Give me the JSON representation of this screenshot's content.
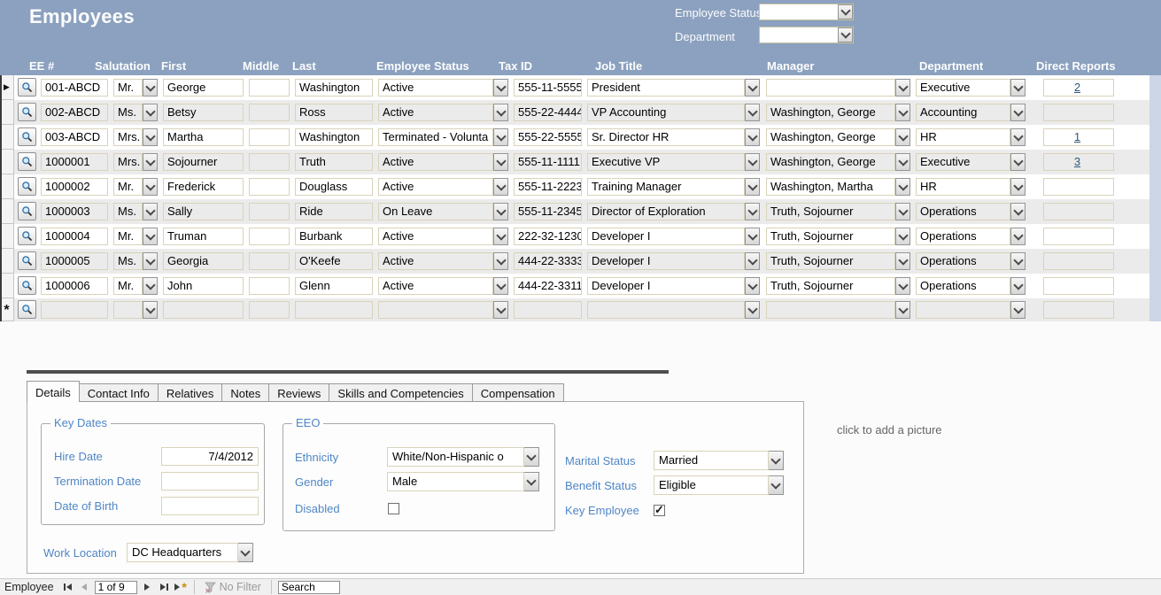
{
  "header": {
    "title": "Employees",
    "filter_employee_status_label": "Employee Status",
    "filter_employee_status_value": "",
    "filter_department_label": "Department",
    "filter_department_value": ""
  },
  "grid": {
    "columns": [
      "EE #",
      "Salutation",
      "First",
      "Middle",
      "Last",
      "Employee Status",
      "Tax ID",
      "Job Title",
      "Manager",
      "Department",
      "Direct Reports"
    ],
    "current_record_marker": "▶",
    "new_record_marker": "*",
    "rows": [
      {
        "ee": "001-ABCD",
        "salutation": "Mr.",
        "first": "George",
        "middle": "",
        "last": "Washington",
        "status": "Active",
        "tax": "555-11-5555",
        "title": "President",
        "manager": "",
        "department": "Executive",
        "reports": "2"
      },
      {
        "ee": "002-ABCD",
        "salutation": "Ms.",
        "first": "Betsy",
        "middle": "",
        "last": "Ross",
        "status": "Active",
        "tax": "555-22-4444",
        "title": "VP Accounting",
        "manager": "Washington, George",
        "department": "Accounting",
        "reports": ""
      },
      {
        "ee": "003-ABCD",
        "salutation": "Mrs.",
        "first": "Martha",
        "middle": "",
        "last": "Washington",
        "status": "Terminated - Volunta",
        "tax": "555-22-5555",
        "title": "Sr. Director HR",
        "manager": "Washington, George",
        "department": "HR",
        "reports": "1"
      },
      {
        "ee": "1000001",
        "salutation": "Mrs.",
        "first": "Sojourner",
        "middle": "",
        "last": "Truth",
        "status": "Active",
        "tax": "555-11-1111",
        "title": "Executive VP",
        "manager": "Washington, George",
        "department": "Executive",
        "reports": "3"
      },
      {
        "ee": "1000002",
        "salutation": "Mr.",
        "first": "Frederick",
        "middle": "",
        "last": "Douglass",
        "status": "Active",
        "tax": "555-11-2223",
        "title": "Training Manager",
        "manager": "Washington, Martha",
        "department": "HR",
        "reports": ""
      },
      {
        "ee": "1000003",
        "salutation": "Ms.",
        "first": "Sally",
        "middle": "",
        "last": "Ride",
        "status": "On Leave",
        "tax": "555-11-2345",
        "title": "Director of Exploration",
        "manager": "Truth, Sojourner",
        "department": "Operations",
        "reports": ""
      },
      {
        "ee": "1000004",
        "salutation": "Mr.",
        "first": "Truman",
        "middle": "",
        "last": "Burbank",
        "status": "Active",
        "tax": "222-32-1230",
        "title": "Developer I",
        "manager": "Truth, Sojourner",
        "department": "Operations",
        "reports": ""
      },
      {
        "ee": "1000005",
        "salutation": "Ms.",
        "first": "Georgia",
        "middle": "",
        "last": "O'Keefe",
        "status": "Active",
        "tax": "444-22-3333",
        "title": "Developer I",
        "manager": "Truth, Sojourner",
        "department": "Operations",
        "reports": ""
      },
      {
        "ee": "1000006",
        "salutation": "Mr.",
        "first": "John",
        "middle": "",
        "last": "Glenn",
        "status": "Active",
        "tax": "444-22-3311",
        "title": "Developer I",
        "manager": "Truth, Sojourner",
        "department": "Operations",
        "reports": ""
      }
    ]
  },
  "tabs": {
    "items": [
      "Details",
      "Contact Info",
      "Relatives",
      "Notes",
      "Reviews",
      "Skills and Competencies",
      "Compensation"
    ],
    "active": "Details"
  },
  "details": {
    "key_dates": {
      "legend": "Key Dates",
      "hire_date_label": "Hire Date",
      "hire_date_value": "7/4/2012",
      "termination_date_label": "Termination Date",
      "termination_date_value": "",
      "dob_label": "Date of Birth",
      "dob_value": ""
    },
    "eeo": {
      "legend": "EEO",
      "ethnicity_label": "Ethnicity",
      "ethnicity_value": "White/Non-Hispanic o",
      "gender_label": "Gender",
      "gender_value": "Male",
      "disabled_label": "Disabled",
      "disabled_checked": false
    },
    "statuses": {
      "marital_label": "Marital Status",
      "marital_value": "Married",
      "benefit_label": "Benefit Status",
      "benefit_value": "Eligible",
      "key_employee_label": "Key Employee",
      "key_employee_checked": true
    },
    "work_location_label": "Work Location",
    "work_location_value": "DC Headquarters"
  },
  "picture_placeholder": "click to add a picture",
  "status_bar": {
    "entity": "Employee",
    "position": "1 of 9",
    "no_filter": "No Filter",
    "search_value": "Search"
  },
  "colors": {
    "header_blue": "#8ba1bf",
    "accent_label_blue": "#4f86c6",
    "link_navy": "#2c5777",
    "row_alt_gray": "#ebebeb",
    "field_border_tan": "#d9d3ba",
    "right_strip_blue": "#ccd6e6"
  }
}
